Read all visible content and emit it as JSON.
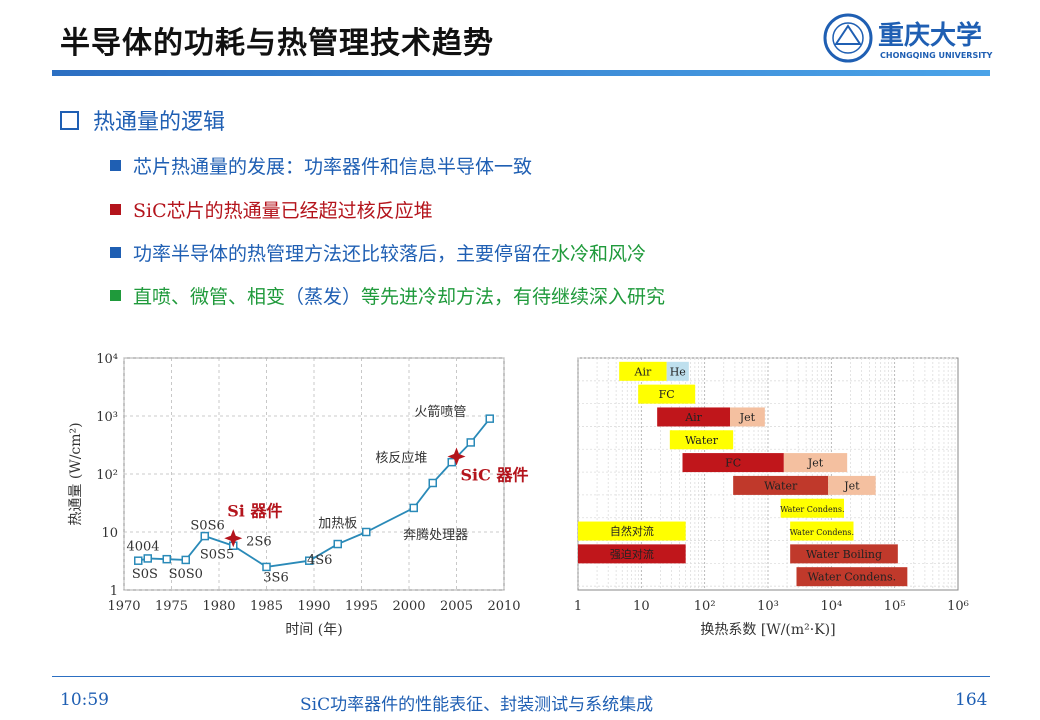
{
  "title": "半导体的功耗与热管理技术趋势",
  "logo": {
    "name": "重庆大学",
    "sub": "CHONGQING UNIVERSITY"
  },
  "heading": "热通量的逻辑",
  "bullets": [
    {
      "text": "芯片热通量的发展：功率器件和信息半导体一致",
      "color": "#1f5fb3"
    },
    {
      "text": "SiC芯片的热通量已经超过核反应堆",
      "color": "#b4141c"
    },
    {
      "pre": "功率半导体的热管理方法还比较落后，主要停留在",
      "highlight": "水冷和风冷",
      "color": "#1f5fb3"
    },
    {
      "pre": "直喷、微管、相变",
      "paren": "（蒸发）",
      "post": "等先进冷却方法，有待继续深入研究",
      "color": "#1f9a3b"
    }
  ],
  "footer": {
    "time": "10:59",
    "center": "SiC功率器件的性能表征、封装测试与系统集成",
    "page": "164"
  },
  "chart_data": [
    {
      "type": "line",
      "xlabel": "时间 (年)",
      "ylabel": "热通量 (W/cm²)",
      "x_ticks": [
        "1970",
        "1975",
        "1980",
        "1985",
        "1990",
        "1995",
        "2000",
        "2005",
        "2010"
      ],
      "y_ticks": [
        "1",
        "10",
        "10²",
        "10³",
        "10⁴"
      ],
      "xlim": [
        1970,
        2010
      ],
      "ylim_log10": [
        0,
        4
      ],
      "series": [
        {
          "x": [
            1971.5,
            1972.5,
            1974.5,
            1976.5,
            1978.5,
            1981.5,
            1985,
            1989.5,
            1992.5,
            1995.5,
            2000.5,
            2002.5,
            2004.5,
            2006.5,
            2008.5
          ],
          "y": [
            3.2,
            3.5,
            3.4,
            3.3,
            8.5,
            5.8,
            2.5,
            3.2,
            6.2,
            10,
            26,
            70,
            160,
            350,
            900
          ]
        }
      ],
      "annotations": [
        {
          "text": "4004",
          "x": 1972,
          "y": 4.8
        },
        {
          "text": "S0S",
          "x": 1972.2,
          "y": 1.6
        },
        {
          "text": "S0S0",
          "x": 1976.5,
          "y": 1.6
        },
        {
          "text": "S0S6",
          "x": 1978.8,
          "y": 11
        },
        {
          "text": "S0S5",
          "x": 1979.8,
          "y": 3.5
        },
        {
          "text": "2S6",
          "x": 1984.2,
          "y": 5.8
        },
        {
          "text": "3S6",
          "x": 1986,
          "y": 1.4
        },
        {
          "text": "4S6",
          "x": 1990.6,
          "y": 2.8
        },
        {
          "text": "加热板",
          "x": 1992.5,
          "y": 12
        },
        {
          "text": "奔腾处理器",
          "x": 2002.8,
          "y": 7.5
        },
        {
          "text": "核反应堆",
          "x": 1999.2,
          "y": 160
        },
        {
          "text": "火箭喷管",
          "x": 2003.3,
          "y": 1000
        }
      ],
      "markers": [
        {
          "label": "Si 器件",
          "x": 1981.5,
          "y": 7.8,
          "color": "#b4141c"
        },
        {
          "label": "SiC 器件",
          "x": 2005,
          "y": 200,
          "color": "#b4141c"
        }
      ],
      "line_color": "#2a8ab8"
    },
    {
      "type": "bar",
      "xlabel": "换热系数 [W/(m²·K)]",
      "x_ticks": [
        "1",
        "10",
        "10²",
        "10³",
        "10⁴",
        "10⁵",
        "10⁶"
      ],
      "xlim_log10": [
        0,
        6
      ],
      "rows": [
        {
          "segments": [
            {
              "label": "Air",
              "x0": 0.65,
              "x1": 1.4,
              "color": "#ffff00"
            },
            {
              "label": "He",
              "x0": 1.4,
              "x1": 1.75,
              "color": "#bfe0ee"
            }
          ]
        },
        {
          "segments": [
            {
              "label": "FC",
              "x0": 0.95,
              "x1": 1.85,
              "color": "#ffff00"
            }
          ]
        },
        {
          "segments": [
            {
              "label": "Air",
              "x0": 1.25,
              "x1": 2.4,
              "color": "#c0161b"
            },
            {
              "label": "Jet",
              "x0": 2.4,
              "x1": 2.95,
              "color": "#f4c0a0"
            }
          ]
        },
        {
          "segments": [
            {
              "label": "Water",
              "x0": 1.45,
              "x1": 2.45,
              "color": "#ffff00"
            }
          ]
        },
        {
          "segments": [
            {
              "label": "FC",
              "x0": 1.65,
              "x1": 3.25,
              "color": "#c0161b"
            },
            {
              "label": "Jet",
              "x0": 3.25,
              "x1": 4.25,
              "color": "#f4c0a0"
            }
          ]
        },
        {
          "segments": [
            {
              "label": "Water",
              "x0": 2.45,
              "x1": 3.95,
              "color": "#c0392b"
            },
            {
              "label": "Jet",
              "x0": 3.95,
              "x1": 4.7,
              "color": "#f4c0a0"
            }
          ]
        },
        {
          "segments": [
            {
              "label": "Water Condens.",
              "x0": 3.2,
              "x1": 4.2,
              "color": "#ffff00"
            }
          ]
        },
        {
          "segments": [
            {
              "label": "自然对流",
              "x0": 0,
              "x1": 1.7,
              "color": "#ffff00"
            },
            {
              "label": "Water Condens.",
              "x0": 3.35,
              "x1": 4.35,
              "color": "#ffff00"
            }
          ]
        },
        {
          "segments": [
            {
              "label": "强迫对流",
              "x0": 0,
              "x1": 1.7,
              "color": "#c0161b"
            },
            {
              "label": "Water Boiling",
              "x0": 3.35,
              "x1": 5.05,
              "color": "#c0392b"
            }
          ]
        },
        {
          "segments": [
            {
              "label": "Water Condens.",
              "x0": 3.45,
              "x1": 5.2,
              "color": "#c0392b"
            }
          ]
        }
      ]
    }
  ]
}
